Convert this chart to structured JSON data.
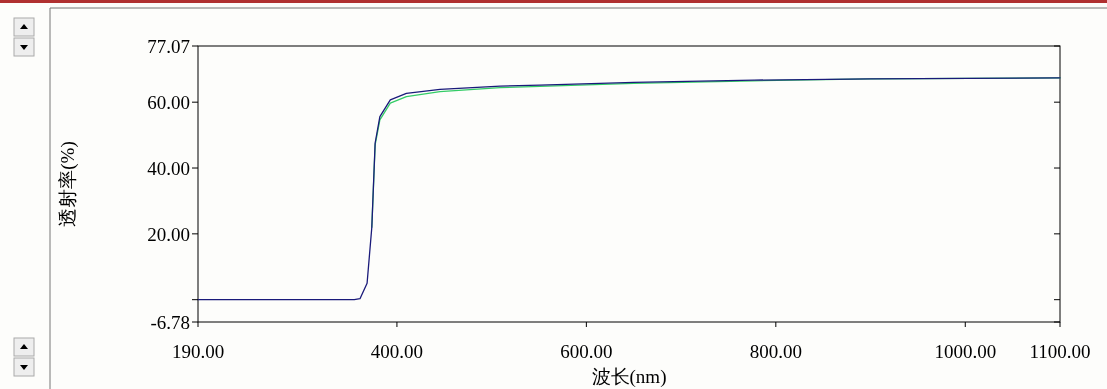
{
  "chart_data": {
    "type": "line",
    "xlabel": "波长(nm)",
    "ylabel": "透射率(%)",
    "xlim": [
      190,
      1100
    ],
    "ylim": [
      -6.78,
      77.07
    ],
    "xticks": [
      {
        "value": 190,
        "label": "190.00"
      },
      {
        "value": 400,
        "label": "400.00"
      },
      {
        "value": 600,
        "label": "600.00"
      },
      {
        "value": 800,
        "label": "800.00"
      },
      {
        "value": 1000,
        "label": "1000.00"
      },
      {
        "value": 1100,
        "label": "1100.00"
      }
    ],
    "yticks": [
      {
        "value": -6.78,
        "label": "-6.78"
      },
      {
        "value": 0,
        "label": null
      },
      {
        "value": 20,
        "label": "20.00"
      },
      {
        "value": 40,
        "label": "40.00"
      },
      {
        "value": 60,
        "label": "60.00"
      },
      {
        "value": 77.07,
        "label": "77.07"
      }
    ],
    "grid": false,
    "line_style": "solid",
    "marker": "none",
    "series": [
      {
        "color": "#33cc66",
        "x": [
          373.5,
          377,
          382,
          393,
          410,
          445.5,
          509,
          551,
          650,
          777,
          900,
          1100
        ],
        "values": [
          22,
          47,
          54.6,
          59.7,
          61.7,
          63.2,
          64.4,
          64.8,
          65.7,
          66.5,
          67.1,
          67.4
        ]
      },
      {
        "color": "#1a1a7a",
        "x": [
          190,
          300,
          355,
          361,
          368.5,
          373.5,
          377,
          382,
          393,
          410,
          445.5,
          509,
          551,
          650,
          777,
          900,
          1100
        ],
        "values": [
          0,
          0,
          0,
          0.3,
          5,
          22,
          47.6,
          55.6,
          60.7,
          62.7,
          63.9,
          64.9,
          65.2,
          66,
          66.7,
          67.1,
          67.4
        ]
      }
    ]
  }
}
